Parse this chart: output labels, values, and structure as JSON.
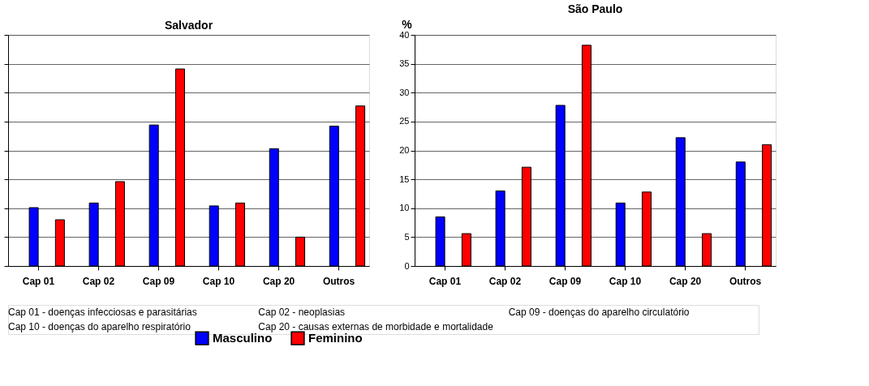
{
  "chart_data": [
    {
      "type": "bar",
      "title": "Salvador",
      "categories": [
        "Cap 01",
        "Cap 02",
        "Cap 09",
        "Cap 10",
        "Cap 20",
        "Outros"
      ],
      "series": [
        {
          "name": "Masculino",
          "color": "#0000ff",
          "values": [
            10.1,
            10.9,
            24.4,
            10.4,
            20.3,
            24.2
          ]
        },
        {
          "name": "Feminino",
          "color": "#ff0000",
          "values": [
            8.0,
            14.6,
            34.1,
            10.9,
            5.0,
            27.7
          ]
        }
      ],
      "ylim": [
        0,
        40
      ],
      "yticks": [
        0,
        5,
        10,
        15,
        20,
        25,
        30,
        35,
        40
      ],
      "grid": "y",
      "tick_labels": "x",
      "legend": "bottom right",
      "annotations": [
        "Cap 01 - doenças infecciosas e parasitárias",
        "Cap 02 - neoplasias",
        "Cap 09 - doenças do aparelho circulatório",
        "Cap 10 - doenças do aparelho respiratório",
        "Cap 20 - causas externas de morbidade e mortalidade"
      ]
    },
    {
      "type": "bar",
      "title": "São Paulo",
      "ylabel": "%",
      "categories": [
        "Cap 01",
        "Cap 02",
        "Cap 09",
        "Cap 10",
        "Cap 20",
        "Outros"
      ],
      "series": [
        {
          "name": "Masculino",
          "color": "#0000ff",
          "values": [
            8.5,
            13.0,
            27.8,
            10.9,
            22.2,
            18.0
          ]
        },
        {
          "name": "Feminino",
          "color": "#ff0000",
          "values": [
            5.6,
            17.1,
            38.2,
            12.8,
            5.6,
            21.0
          ]
        }
      ],
      "ylim": [
        0,
        40
      ],
      "yticks": [
        0,
        5,
        10,
        15,
        20,
        25,
        30,
        35,
        40
      ],
      "grid": "y",
      "legend": "bottom right"
    }
  ]
}
